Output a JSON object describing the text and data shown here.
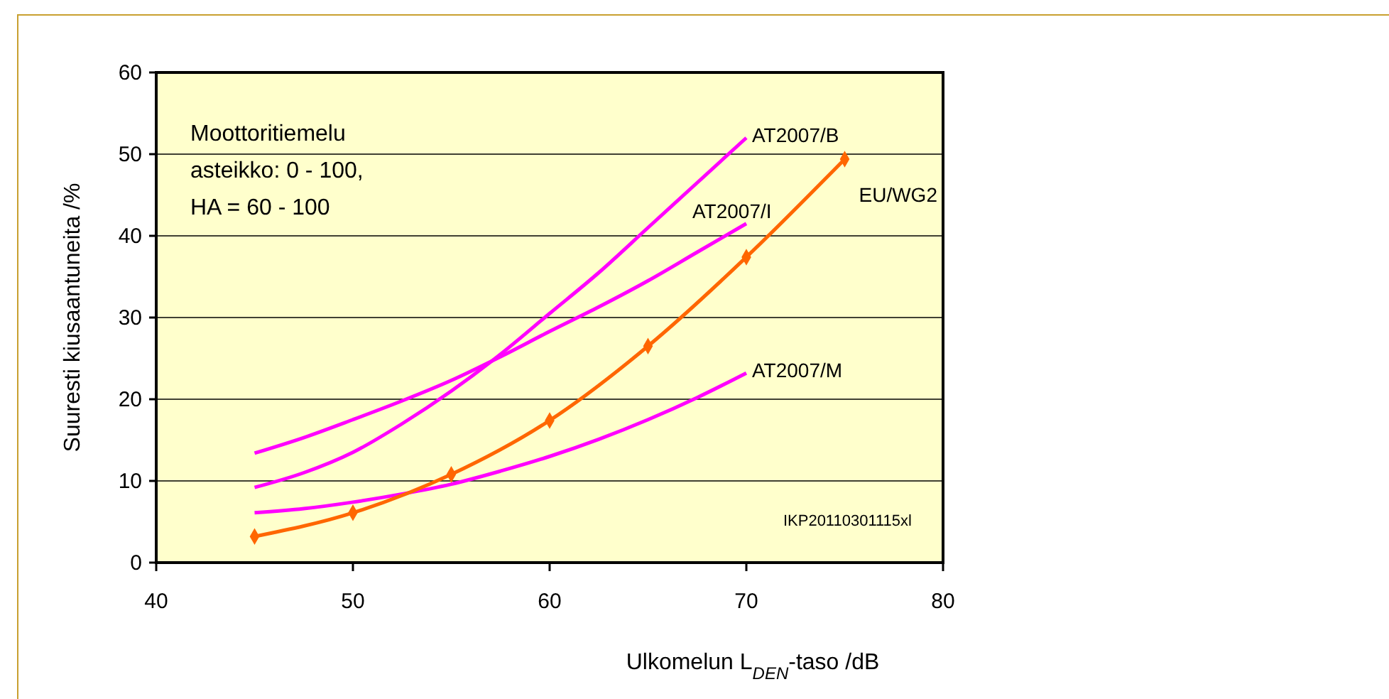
{
  "chart_data": {
    "type": "line",
    "xlabel": "Ulkomelun L$_{DEN}$-taso /dB",
    "ylabel": "Suuresti kiusaantuneita /%",
    "xlim": [
      40,
      80
    ],
    "xticks": [
      40,
      50,
      60,
      70,
      80
    ],
    "ylim": [
      0,
      60
    ],
    "yticks": [
      0,
      10,
      20,
      30,
      40,
      50,
      60
    ],
    "grid": "y",
    "annotations": [
      "Moottoritiemelu",
      "asteikko: 0 - 100,",
      "HA = 60 - 100",
      "IKP20110301115xl"
    ],
    "series": [
      {
        "name": "AT2007/B",
        "color": "#ff00ff",
        "marker": "none",
        "x": [
          45,
          47.5,
          50,
          52.5,
          55,
          57.5,
          60,
          62.5,
          65,
          67.5,
          70
        ],
        "values": [
          9.2,
          11,
          13.5,
          17,
          21,
          25.5,
          30.5,
          35.5,
          41,
          46.5,
          52
        ]
      },
      {
        "name": "AT2007/I",
        "color": "#ff00ff",
        "marker": "none",
        "x": [
          45,
          47.5,
          50,
          52.5,
          55,
          57.5,
          60,
          62.5,
          65,
          67.5,
          70
        ],
        "values": [
          13.4,
          15.3,
          17.5,
          19.8,
          22.3,
          25.2,
          28.3,
          31.3,
          34.5,
          38,
          41.5
        ]
      },
      {
        "name": "AT2007/M",
        "color": "#ff00ff",
        "marker": "none",
        "x": [
          45,
          47.5,
          50,
          52.5,
          55,
          57.5,
          60,
          62.5,
          65,
          67.5,
          70
        ],
        "values": [
          6.1,
          6.6,
          7.4,
          8.4,
          9.6,
          11.2,
          13,
          15.1,
          17.5,
          20.2,
          23.2
        ]
      },
      {
        "name": "EU/WG2",
        "color": "#ff6600",
        "marker": "diamond",
        "x": [
          45,
          50,
          55,
          60,
          65,
          70,
          75
        ],
        "values": [
          3.2,
          6.1,
          10.8,
          17.4,
          26.5,
          37.4,
          49.4
        ]
      }
    ]
  }
}
